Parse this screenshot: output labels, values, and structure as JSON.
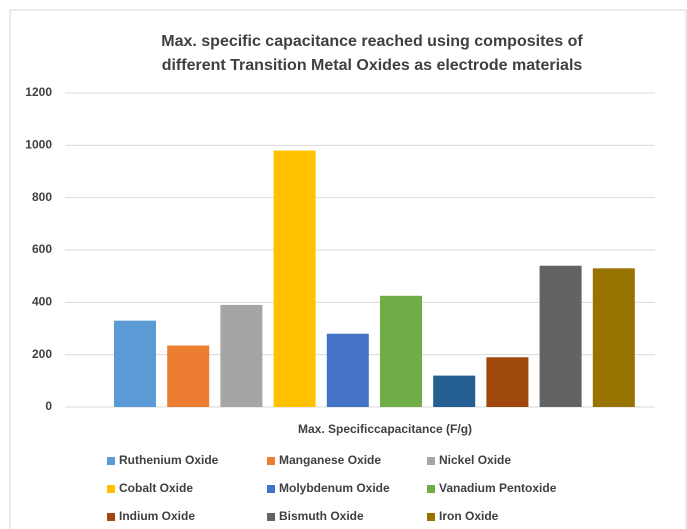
{
  "chart_data": {
    "type": "bar",
    "title": "Max. specific capacitance reached using composites of",
    "subtitle": "different Transition Metal Oxides as electrode materials",
    "x_label": "Max. Specificcapacitance (F/g)",
    "ylim": [
      0,
      1200
    ],
    "yticks": [
      0,
      200,
      400,
      600,
      800,
      1000,
      1200
    ],
    "grid": true,
    "series": [
      {
        "name": "Ruthenium Oxide",
        "color": "#5b9bd5",
        "values": [
          330
        ]
      },
      {
        "name": "Manganese Oxide",
        "color": "#ed7d31",
        "values": [
          235
        ]
      },
      {
        "name": "Nickel Oxide",
        "color": "#a5a5a5",
        "values": [
          390
        ]
      },
      {
        "name": "Cobalt Oxide",
        "color": "#ffc000",
        "values": [
          980
        ]
      },
      {
        "name": "Molybdenum Oxide",
        "color": "#4472c4",
        "values": [
          280
        ]
      },
      {
        "name": "Vanadium Pentoxide",
        "color": "#70ad47",
        "values": [
          425
        ]
      },
      {
        "name": null,
        "color": "#255e91",
        "values": [
          120
        ]
      },
      {
        "name": "Indium Oxide",
        "color": "#9e480e",
        "values": [
          190
        ]
      },
      {
        "name": "Bismuth Oxide",
        "color": "#636363",
        "values": [
          540
        ]
      },
      {
        "name": "Iron Oxide",
        "color": "#997300",
        "values": [
          530
        ]
      }
    ]
  }
}
